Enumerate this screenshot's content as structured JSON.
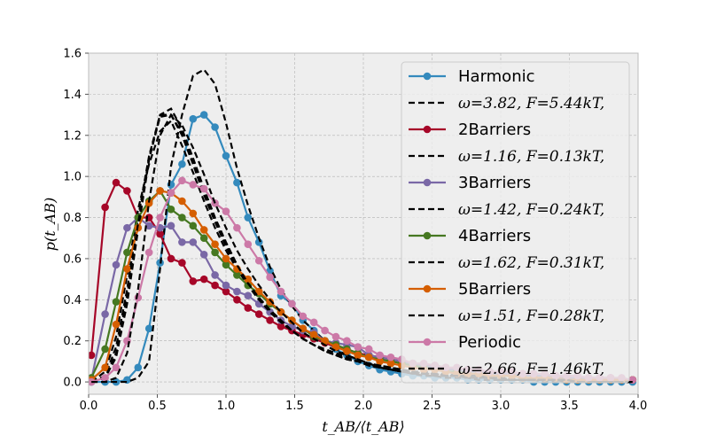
{
  "chart_data": {
    "type": "line",
    "title": "",
    "xlabel": "t_AB/⟨t_AB⟩",
    "ylabel": "p(t_AB)",
    "xlim": [
      0.0,
      4.0
    ],
    "ylim": [
      -0.06,
      1.6
    ],
    "xticks": [
      "0.0",
      "0.5",
      "1.0",
      "1.5",
      "2.0",
      "2.5",
      "3.0",
      "3.5",
      "4.0"
    ],
    "yticks": [
      "0.0",
      "0.2",
      "0.4",
      "0.6",
      "0.8",
      "1.0",
      "1.2",
      "1.4",
      "1.6"
    ],
    "grid": true,
    "legend_position": "top-right",
    "x": [
      0.02,
      0.12,
      0.2,
      0.28,
      0.36,
      0.44,
      0.52,
      0.6,
      0.68,
      0.76,
      0.84,
      0.92,
      1.0,
      1.08,
      1.16,
      1.24,
      1.32,
      1.4,
      1.48,
      1.56,
      1.64,
      1.72,
      1.8,
      1.88,
      1.96,
      2.04,
      2.12,
      2.2,
      2.28,
      2.36,
      2.44,
      2.52,
      2.6,
      2.68,
      2.76,
      2.84,
      2.92,
      3.0,
      3.08,
      3.16,
      3.24,
      3.32,
      3.4,
      3.48,
      3.56,
      3.64,
      3.72,
      3.8,
      3.88,
      3.96
    ],
    "series": [
      {
        "name": "Harmonic",
        "color": "#348abd",
        "style": "marker-line",
        "values": [
          0.0,
          0.0,
          0.0,
          0.01,
          0.07,
          0.26,
          0.58,
          0.96,
          1.06,
          1.28,
          1.3,
          1.24,
          1.1,
          0.97,
          0.8,
          0.68,
          0.54,
          0.42,
          0.38,
          0.3,
          0.25,
          0.2,
          0.16,
          0.13,
          0.1,
          0.08,
          0.06,
          0.05,
          0.04,
          0.03,
          0.03,
          0.02,
          0.02,
          0.02,
          0.01,
          0.01,
          0.01,
          0.01,
          0.01,
          0.01,
          0.0,
          0.0,
          0.0,
          0.0,
          0.0,
          0.0,
          0.0,
          0.0,
          0.0,
          0.0
        ]
      },
      {
        "name": "ω=3.82, F=5.44kT,",
        "color": "#000000",
        "style": "dashed",
        "values": [
          0.0,
          0.0,
          0.0,
          0.0,
          0.02,
          0.1,
          0.55,
          1.05,
          1.3,
          1.49,
          1.52,
          1.45,
          1.26,
          1.04,
          0.86,
          0.7,
          0.56,
          0.45,
          0.37,
          0.3,
          0.25,
          0.2,
          0.16,
          0.13,
          0.11,
          0.09,
          0.07,
          0.06,
          0.05,
          0.04,
          0.03,
          0.03,
          0.02,
          0.02,
          0.02,
          0.01,
          0.01,
          0.01,
          0.01,
          0.01,
          0.01,
          0.0,
          0.0,
          0.0,
          0.0,
          0.0,
          0.0,
          0.0,
          0.0,
          0.0
        ]
      },
      {
        "name": "2Barriers",
        "color": "#a60628",
        "style": "marker-line",
        "values": [
          0.13,
          0.85,
          0.97,
          0.93,
          0.8,
          0.8,
          0.72,
          0.6,
          0.58,
          0.49,
          0.5,
          0.47,
          0.44,
          0.4,
          0.36,
          0.33,
          0.3,
          0.27,
          0.25,
          0.23,
          0.21,
          0.19,
          0.17,
          0.16,
          0.14,
          0.13,
          0.12,
          0.11,
          0.1,
          0.09,
          0.08,
          0.08,
          0.07,
          0.06,
          0.06,
          0.05,
          0.05,
          0.04,
          0.04,
          0.04,
          0.03,
          0.03,
          0.03,
          0.02,
          0.02,
          0.02,
          0.02,
          0.02,
          0.01,
          0.01
        ]
      },
      {
        "name": "ω=1.16, F=0.13kT,",
        "color": "#000000",
        "style": "dashed",
        "values": [
          0.0,
          0.05,
          0.22,
          0.52,
          0.84,
          1.06,
          1.22,
          1.27,
          1.15,
          1.02,
          0.88,
          0.75,
          0.64,
          0.55,
          0.47,
          0.4,
          0.34,
          0.29,
          0.25,
          0.21,
          0.18,
          0.16,
          0.14,
          0.12,
          0.1,
          0.09,
          0.08,
          0.07,
          0.06,
          0.05,
          0.05,
          0.04,
          0.04,
          0.03,
          0.03,
          0.03,
          0.02,
          0.02,
          0.02,
          0.02,
          0.01,
          0.01,
          0.01,
          0.01,
          0.01,
          0.01,
          0.01,
          0.0,
          0.0,
          0.0
        ]
      },
      {
        "name": "3Barriers",
        "color": "#7a68a6",
        "style": "marker-line",
        "values": [
          0.01,
          0.33,
          0.57,
          0.75,
          0.8,
          0.76,
          0.75,
          0.76,
          0.68,
          0.68,
          0.62,
          0.52,
          0.47,
          0.44,
          0.42,
          0.38,
          0.34,
          0.3,
          0.27,
          0.25,
          0.24,
          0.2,
          0.19,
          0.18,
          0.17,
          0.13,
          0.12,
          0.11,
          0.1,
          0.09,
          0.08,
          0.07,
          0.06,
          0.06,
          0.05,
          0.05,
          0.04,
          0.04,
          0.04,
          0.03,
          0.03,
          0.03,
          0.02,
          0.02,
          0.02,
          0.02,
          0.02,
          0.01,
          0.01,
          0.01
        ]
      },
      {
        "name": "ω=1.42, F=0.24kT,",
        "color": "#000000",
        "style": "dashed",
        "values": [
          0.0,
          0.03,
          0.17,
          0.45,
          0.8,
          1.1,
          1.3,
          1.3,
          1.2,
          1.06,
          0.91,
          0.78,
          0.66,
          0.56,
          0.47,
          0.4,
          0.34,
          0.29,
          0.25,
          0.21,
          0.18,
          0.15,
          0.13,
          0.11,
          0.1,
          0.08,
          0.07,
          0.06,
          0.05,
          0.05,
          0.04,
          0.04,
          0.03,
          0.03,
          0.02,
          0.02,
          0.02,
          0.02,
          0.01,
          0.01,
          0.01,
          0.01,
          0.01,
          0.01,
          0.01,
          0.0,
          0.0,
          0.0,
          0.0,
          0.0
        ]
      },
      {
        "name": "4Barriers",
        "color": "#467821",
        "style": "marker-line",
        "values": [
          0.02,
          0.16,
          0.39,
          0.63,
          0.8,
          0.88,
          0.93,
          0.84,
          0.8,
          0.76,
          0.7,
          0.63,
          0.57,
          0.52,
          0.47,
          0.43,
          0.38,
          0.34,
          0.3,
          0.26,
          0.22,
          0.2,
          0.18,
          0.16,
          0.14,
          0.12,
          0.11,
          0.1,
          0.09,
          0.08,
          0.07,
          0.06,
          0.05,
          0.05,
          0.04,
          0.04,
          0.03,
          0.03,
          0.03,
          0.02,
          0.02,
          0.02,
          0.02,
          0.01,
          0.01,
          0.01,
          0.01,
          0.01,
          0.01,
          0.01
        ]
      },
      {
        "name": "ω=1.62, F=0.31kT,",
        "color": "#000000",
        "style": "dashed",
        "values": [
          0.0,
          0.02,
          0.12,
          0.38,
          0.74,
          1.08,
          1.3,
          1.33,
          1.23,
          1.09,
          0.94,
          0.8,
          0.68,
          0.57,
          0.48,
          0.41,
          0.35,
          0.3,
          0.25,
          0.21,
          0.18,
          0.15,
          0.13,
          0.11,
          0.1,
          0.08,
          0.07,
          0.06,
          0.05,
          0.04,
          0.04,
          0.03,
          0.03,
          0.03,
          0.02,
          0.02,
          0.02,
          0.01,
          0.01,
          0.01,
          0.01,
          0.01,
          0.01,
          0.0,
          0.0,
          0.0,
          0.0,
          0.0,
          0.0,
          0.0
        ]
      },
      {
        "name": "5Barriers",
        "color": "#d55e00",
        "style": "marker-line",
        "values": [
          0.01,
          0.07,
          0.28,
          0.55,
          0.75,
          0.87,
          0.93,
          0.92,
          0.88,
          0.82,
          0.74,
          0.67,
          0.6,
          0.55,
          0.5,
          0.44,
          0.39,
          0.34,
          0.3,
          0.26,
          0.23,
          0.2,
          0.17,
          0.15,
          0.13,
          0.12,
          0.1,
          0.09,
          0.08,
          0.07,
          0.06,
          0.06,
          0.05,
          0.04,
          0.04,
          0.04,
          0.03,
          0.03,
          0.03,
          0.02,
          0.02,
          0.02,
          0.02,
          0.01,
          0.01,
          0.01,
          0.01,
          0.01,
          0.01,
          0.01
        ]
      },
      {
        "name": "ω=1.51, F=0.28kT,",
        "color": "#000000",
        "style": "dashed",
        "values": [
          0.0,
          0.02,
          0.14,
          0.42,
          0.77,
          1.09,
          1.29,
          1.3,
          1.21,
          1.07,
          0.93,
          0.79,
          0.67,
          0.57,
          0.48,
          0.41,
          0.35,
          0.3,
          0.25,
          0.21,
          0.18,
          0.15,
          0.13,
          0.11,
          0.1,
          0.08,
          0.07,
          0.06,
          0.05,
          0.05,
          0.04,
          0.03,
          0.03,
          0.03,
          0.02,
          0.02,
          0.02,
          0.01,
          0.01,
          0.01,
          0.01,
          0.01,
          0.01,
          0.01,
          0.0,
          0.0,
          0.0,
          0.0,
          0.0,
          0.0
        ]
      },
      {
        "name": "Periodic",
        "color": "#cc79a7",
        "style": "marker-line",
        "values": [
          0.0,
          0.02,
          0.07,
          0.2,
          0.41,
          0.63,
          0.8,
          0.92,
          0.98,
          0.96,
          0.94,
          0.87,
          0.83,
          0.75,
          0.67,
          0.59,
          0.51,
          0.44,
          0.38,
          0.32,
          0.29,
          0.25,
          0.22,
          0.2,
          0.17,
          0.16,
          0.13,
          0.12,
          0.11,
          0.09,
          0.09,
          0.08,
          0.07,
          0.07,
          0.06,
          0.06,
          0.05,
          0.05,
          0.05,
          0.04,
          0.04,
          0.04,
          0.03,
          0.03,
          0.03,
          0.02,
          0.02,
          0.02,
          0.02,
          0.01
        ]
      },
      {
        "name": "ω=2.66, F=1.46kT,",
        "color": "#000000",
        "style": "dashed",
        "values": [
          0.0,
          0.0,
          0.02,
          0.14,
          0.45,
          0.88,
          1.2,
          1.3,
          1.25,
          1.14,
          1.01,
          0.87,
          0.75,
          0.64,
          0.55,
          0.47,
          0.4,
          0.34,
          0.29,
          0.24,
          0.21,
          0.18,
          0.15,
          0.13,
          0.11,
          0.09,
          0.08,
          0.07,
          0.06,
          0.05,
          0.04,
          0.04,
          0.03,
          0.03,
          0.02,
          0.02,
          0.02,
          0.02,
          0.01,
          0.01,
          0.01,
          0.01,
          0.01,
          0.01,
          0.0,
          0.0,
          0.0,
          0.0,
          0.0,
          0.0
        ]
      }
    ]
  }
}
